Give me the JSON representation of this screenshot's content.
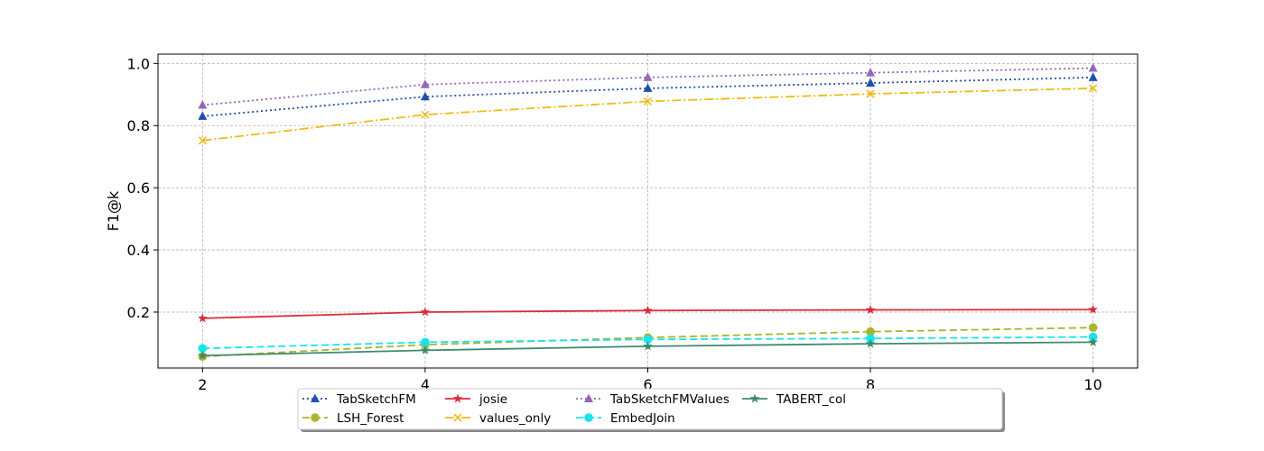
{
  "chart_data": {
    "type": "line",
    "title": "",
    "xlabel": "",
    "ylabel": "F1@k",
    "x": [
      2,
      4,
      6,
      8,
      10
    ],
    "xlim": [
      1.6,
      10.4
    ],
    "ylim": [
      0.02,
      1.03
    ],
    "xticks": [
      "2",
      "4",
      "6",
      "8",
      "10"
    ],
    "yticks": [
      "0.2",
      "0.4",
      "0.6",
      "0.8",
      "1.0"
    ],
    "ytick_values": [
      0.2,
      0.4,
      0.6,
      0.8,
      1.0
    ],
    "grid": true,
    "legend_position": "bottom-center",
    "series": [
      {
        "name": "TabSketchFM",
        "values": [
          0.83,
          0.893,
          0.92,
          0.937,
          0.955
        ],
        "color": "#1f4fb4",
        "dash": "2 3",
        "marker": "triangle"
      },
      {
        "name": "LSH_Forest",
        "values": [
          0.057,
          0.095,
          0.118,
          0.137,
          0.15
        ],
        "color": "#a9b52a",
        "dash": "8 4",
        "marker": "circle"
      },
      {
        "name": "josie",
        "values": [
          0.18,
          0.2,
          0.205,
          0.207,
          0.208
        ],
        "color": "#dc2d3a",
        "dash": "",
        "marker": "star"
      },
      {
        "name": "values_only",
        "values": [
          0.752,
          0.835,
          0.878,
          0.902,
          0.92
        ],
        "color": "#f5bb12",
        "dash": "10 3 2 3",
        "marker": "x"
      },
      {
        "name": "TabSketchFMValues",
        "values": [
          0.866,
          0.932,
          0.955,
          0.97,
          0.985
        ],
        "color": "#9467bd",
        "dash": "2 3",
        "marker": "triangle"
      },
      {
        "name": "EmbedJoin",
        "values": [
          0.083,
          0.103,
          0.112,
          0.115,
          0.12
        ],
        "color": "#12e6f0",
        "dash": "8 4",
        "marker": "circle"
      },
      {
        "name": "TABERT_col",
        "values": [
          0.06,
          0.077,
          0.09,
          0.098,
          0.103
        ],
        "color": "#3f8a6e",
        "dash": "",
        "marker": "star"
      }
    ]
  }
}
